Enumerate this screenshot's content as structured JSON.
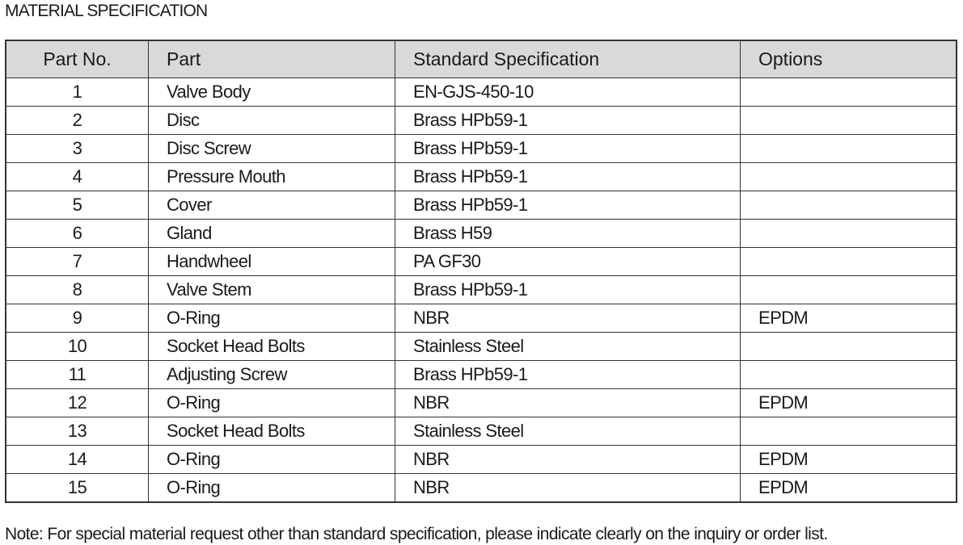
{
  "title": "MATERIAL SPECIFICATION",
  "table": {
    "headers": [
      "Part No.",
      "Part",
      "Standard Specification",
      "Options"
    ],
    "rows": [
      [
        "1",
        "Valve Body",
        "EN-GJS-450-10",
        ""
      ],
      [
        "2",
        "Disc",
        "Brass HPb59-1",
        ""
      ],
      [
        "3",
        "Disc Screw",
        "Brass HPb59-1",
        ""
      ],
      [
        "4",
        "Pressure Mouth",
        "Brass HPb59-1",
        ""
      ],
      [
        "5",
        "Cover",
        "Brass HPb59-1",
        ""
      ],
      [
        "6",
        "Gland",
        "Brass H59",
        ""
      ],
      [
        "7",
        "Handwheel",
        "PA GF30",
        ""
      ],
      [
        "8",
        "Valve Stem",
        "Brass HPb59-1",
        ""
      ],
      [
        "9",
        "O-Ring",
        "NBR",
        "EPDM"
      ],
      [
        "10",
        "Socket Head Bolts",
        "Stainless Steel",
        ""
      ],
      [
        "11",
        "Adjusting Screw",
        "Brass HPb59-1",
        ""
      ],
      [
        "12",
        "O-Ring",
        "NBR",
        "EPDM"
      ],
      [
        "13",
        "Socket Head Bolts",
        "Stainless Steel",
        ""
      ],
      [
        "14",
        "O-Ring",
        "NBR",
        "EPDM"
      ],
      [
        "15",
        "O-Ring",
        "NBR",
        "EPDM"
      ]
    ]
  },
  "note": "Note: For special material request other than standard specification, please indicate clearly on the inquiry or order list.",
  "colors": {
    "header_bg": "#d9d9d9",
    "border": "#333333"
  }
}
